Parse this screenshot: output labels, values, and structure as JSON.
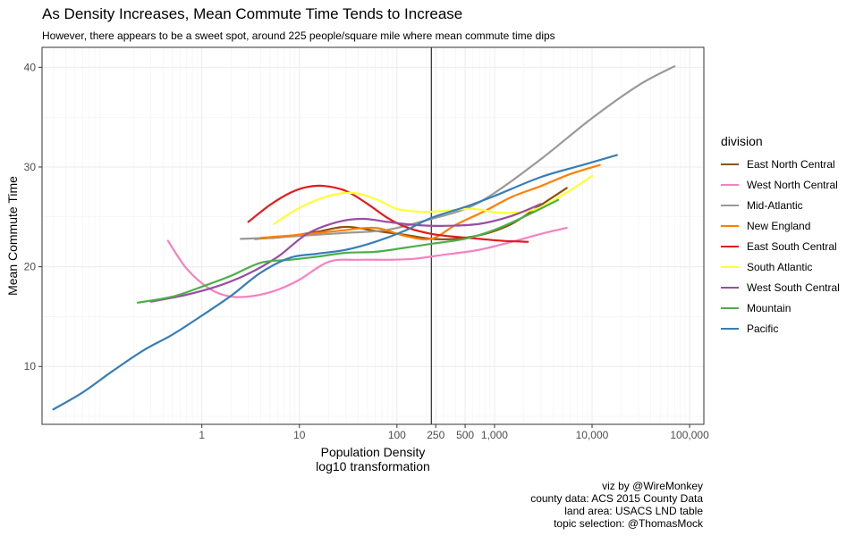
{
  "chart_data": {
    "type": "line",
    "title": "As Density Increases, Mean Commute Time Tends to Increase",
    "subtitle": "However, there appears to be a sweet spot, around 225 people/square mile where mean commute time dips",
    "xlabel_lines": [
      "Population Density",
      "log10 transformation"
    ],
    "ylabel": "Mean Commute Time",
    "x_scale": "log10",
    "xlim": [
      0.023,
      140000
    ],
    "ylim": [
      4.2,
      42
    ],
    "x_ticks": [
      {
        "value": 1,
        "label": "1"
      },
      {
        "value": 10,
        "label": "10"
      },
      {
        "value": 100,
        "label": "100"
      },
      {
        "value": 250,
        "label": "250"
      },
      {
        "value": 500,
        "label": "500"
      },
      {
        "value": 1000,
        "label": "1,000"
      },
      {
        "value": 10000,
        "label": "10,000"
      },
      {
        "value": 100000,
        "label": "100,000"
      }
    ],
    "y_ticks": [
      10,
      20,
      30,
      40
    ],
    "vline_x": 225,
    "grid": true,
    "legend_title": "division",
    "legend_position": "right",
    "series": [
      {
        "name": "East North Central",
        "color": "#8C510A",
        "points": [
          [
            3.5,
            22.8
          ],
          [
            7,
            23.0
          ],
          [
            15,
            23.5
          ],
          [
            30,
            24.0
          ],
          [
            60,
            23.6
          ],
          [
            120,
            23.2
          ],
          [
            225,
            22.8
          ],
          [
            400,
            22.8
          ],
          [
            800,
            23.3
          ],
          [
            1500,
            24.3
          ],
          [
            3000,
            26.2
          ],
          [
            5500,
            27.9
          ]
        ]
      },
      {
        "name": "West North Central",
        "color": "#F781BF",
        "points": [
          [
            0.45,
            22.6
          ],
          [
            0.7,
            19.8
          ],
          [
            1.2,
            17.8
          ],
          [
            2,
            17.0
          ],
          [
            3.5,
            17.1
          ],
          [
            6,
            17.7
          ],
          [
            10,
            18.7
          ],
          [
            20,
            20.5
          ],
          [
            40,
            20.7
          ],
          [
            80,
            20.7
          ],
          [
            150,
            20.8
          ],
          [
            300,
            21.2
          ],
          [
            700,
            21.7
          ],
          [
            1500,
            22.5
          ],
          [
            3000,
            23.3
          ],
          [
            5500,
            23.9
          ]
        ]
      },
      {
        "name": "Mid-Atlantic",
        "color": "#999999",
        "points": [
          [
            2.5,
            22.8
          ],
          [
            5,
            22.9
          ],
          [
            10,
            23.1
          ],
          [
            30,
            23.4
          ],
          [
            80,
            23.7
          ],
          [
            225,
            24.8
          ],
          [
            500,
            25.8
          ],
          [
            1000,
            27.4
          ],
          [
            3000,
            30.8
          ],
          [
            10000,
            34.9
          ],
          [
            30000,
            38.2
          ],
          [
            70000,
            40.1
          ]
        ]
      },
      {
        "name": "New England",
        "color": "#FF7F00",
        "points": [
          [
            4,
            22.9
          ],
          [
            10,
            23.2
          ],
          [
            25,
            23.6
          ],
          [
            60,
            23.9
          ],
          [
            120,
            23.1
          ],
          [
            225,
            22.8
          ],
          [
            400,
            24.2
          ],
          [
            800,
            25.6
          ],
          [
            1500,
            27.0
          ],
          [
            3000,
            28.1
          ],
          [
            6000,
            29.3
          ],
          [
            12000,
            30.2
          ]
        ]
      },
      {
        "name": "East South Central",
        "color": "#E41A1C",
        "points": [
          [
            3,
            24.5
          ],
          [
            5,
            26.2
          ],
          [
            8,
            27.4
          ],
          [
            12,
            28.0
          ],
          [
            18,
            28.1
          ],
          [
            30,
            27.6
          ],
          [
            50,
            26.3
          ],
          [
            80,
            24.9
          ],
          [
            130,
            23.9
          ],
          [
            225,
            23.3
          ],
          [
            400,
            23.0
          ],
          [
            700,
            22.8
          ],
          [
            1200,
            22.6
          ],
          [
            2200,
            22.5
          ]
        ]
      },
      {
        "name": "South Atlantic",
        "color": "#FFFF33",
        "points": [
          [
            5.5,
            24.3
          ],
          [
            10,
            25.9
          ],
          [
            20,
            27.1
          ],
          [
            35,
            27.4
          ],
          [
            60,
            26.8
          ],
          [
            100,
            25.8
          ],
          [
            180,
            25.5
          ],
          [
            300,
            25.6
          ],
          [
            600,
            25.8
          ],
          [
            1200,
            25.4
          ],
          [
            2500,
            25.7
          ],
          [
            5000,
            27.2
          ],
          [
            10000,
            29.1
          ]
        ]
      },
      {
        "name": "West South Central",
        "color": "#984EA3",
        "points": [
          [
            0.3,
            16.5
          ],
          [
            0.7,
            17.2
          ],
          [
            1.5,
            18.1
          ],
          [
            3,
            19.3
          ],
          [
            6,
            21.0
          ],
          [
            12,
            23.3
          ],
          [
            25,
            24.5
          ],
          [
            45,
            24.8
          ],
          [
            80,
            24.5
          ],
          [
            150,
            24.2
          ],
          [
            300,
            24.1
          ],
          [
            700,
            24.3
          ],
          [
            1500,
            25.1
          ],
          [
            3000,
            26.3
          ]
        ]
      },
      {
        "name": "Mountain",
        "color": "#4DAF4A",
        "points": [
          [
            0.22,
            16.4
          ],
          [
            0.5,
            17.0
          ],
          [
            1,
            18.0
          ],
          [
            2,
            19.1
          ],
          [
            4,
            20.4
          ],
          [
            8,
            20.7
          ],
          [
            15,
            21.0
          ],
          [
            30,
            21.4
          ],
          [
            60,
            21.5
          ],
          [
            120,
            21.9
          ],
          [
            225,
            22.3
          ],
          [
            500,
            22.8
          ],
          [
            1000,
            23.7
          ],
          [
            2000,
            25.0
          ],
          [
            4500,
            26.7
          ]
        ]
      },
      {
        "name": "Pacific",
        "color": "#377EB8",
        "points": [
          [
            0.03,
            5.7
          ],
          [
            0.06,
            7.4
          ],
          [
            0.12,
            9.5
          ],
          [
            0.25,
            11.6
          ],
          [
            0.5,
            13.2
          ],
          [
            1,
            15.1
          ],
          [
            2,
            17.1
          ],
          [
            4,
            19.4
          ],
          [
            8,
            20.9
          ],
          [
            15,
            21.3
          ],
          [
            30,
            21.7
          ],
          [
            60,
            22.5
          ],
          [
            120,
            23.6
          ],
          [
            225,
            24.9
          ],
          [
            500,
            26.0
          ],
          [
            1000,
            27.1
          ],
          [
            3000,
            29.0
          ],
          [
            8000,
            30.2
          ],
          [
            18000,
            31.2
          ]
        ]
      }
    ]
  },
  "caption_lines": [
    "viz by @WireMonkey",
    "county data: ACS 2015 County Data",
    "land area: USACS LND table",
    "topic selection: @ThomasMock"
  ]
}
